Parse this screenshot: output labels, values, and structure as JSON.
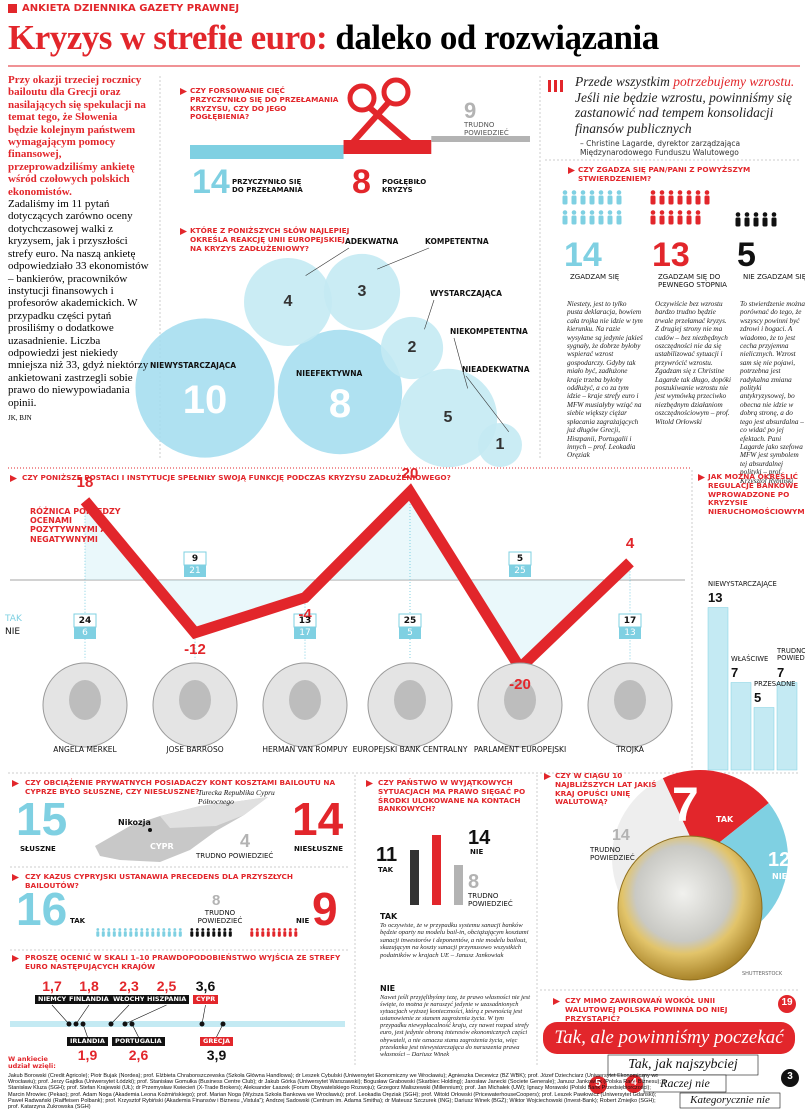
{
  "header": {
    "kicker": "ANKIETA DZIENNIKA GAZETY PRAWNEJ",
    "title_red": "Kryzys w strefie euro:",
    "title_black": "daleko od rozwiązania"
  },
  "intro": {
    "lead": "Przy okazji trzeciej rocznicy bailoutu dla Grecji oraz nasilających się spekulacji na temat tego, że Słowenia będzie kolejnym państwem wymagającym pomocy finansowej, przeprowadziliśmy ankietę wśród czołowych polskich ekonomistów.",
    "body": "Zadaliśmy im 11 pytań dotyczących zarówno oceny dotychczasowej walki z kryzysem, jak i przyszłości strefy euro. Na naszą ankietę odpowiedziało 33 ekonomistów – bankierów, pracowników instytucji finansowych i profesorów akademickich. W przypadku części pytań prosiliśmy o dodatkowe uzasadnienie. Liczba odpowiedzi jest niekiedy mniejsza niż 33, gdyż niektórzy ankietowani zastrzegli sobie prawo do niewypowiadania opinii.",
    "signature": "JK, BJN"
  },
  "q1": {
    "question": "CZY FORSOWANIE CIĘĆ PRZYCZYNIŁO SIĘ DO PRZEŁAMANIA KRYZYSU, CZY DO JEGO POGŁĘBIENIA?",
    "items": [
      {
        "value": 14,
        "label": "PRZYCZYNIŁO SIĘ DO PRZEŁAMANIA"
      },
      {
        "value": 8,
        "label": "POGŁĘBIŁO KRYZYS"
      },
      {
        "value": 9,
        "label": "TRUDNO POWIEDZIEĆ"
      }
    ]
  },
  "q2": {
    "question": "KTÓRE Z PONIŻSZYCH SŁÓW NAJLEPIEJ OKREŚLA REAKCJĘ UNII EUROPEJSKIEJ NA KRYZYS ZADŁUŻENIOWY?",
    "items": [
      {
        "label": "NIEWYSTARCZAJĄCA",
        "value": 10
      },
      {
        "label": "NIEEFEKTYWNA",
        "value": 8
      },
      {
        "label": "ADEKWATNA",
        "value": 4
      },
      {
        "label": "KOMPETENTNA",
        "value": 3
      },
      {
        "label": "WYSTARCZAJĄCA",
        "value": 2
      },
      {
        "label": "NIEKOMPETENTNA",
        "value": 5
      },
      {
        "label": "NIEADEKWATNA",
        "value": 1
      }
    ]
  },
  "quote": {
    "text_start": "Przede wszystkim",
    "text_highlight": "potrzebujemy wzrostu.",
    "text_end": "Jeśli nie będzie wzrostu, powinniśmy się zastanowić nad tempem konsolidacji finansów publicznych",
    "author": "– Christine Lagarde, dyrektor zarządzająca Międzynarodowego Funduszu Walutowego"
  },
  "q3": {
    "question": "CZY ZGADZA SIĘ PAN/PANI Z POWYŻSZYM STWIERDZENIEM?",
    "items": [
      {
        "value": 14,
        "label": "ZGADZAM SIĘ",
        "comment": "Niestety, jest to tylko pusta deklaracja, bowiem cała trojka nie idzie w tym kierunku. Na razie wysyłane są jedynie jakieś sygnały, że dobrze byłoby wspierać wzrost gospodarczy. Gdyby tak miało być, zadłużone kraje trzeba byłoby oddłużyć, a co za tym idzie – kraje strefy euro i MFW musiałyby wziąć na siebie większy ciężar spłacania zagrażających już długów Grecji, Hiszpanii, Portugalii i innych – prof. Leokadia Oręziak"
      },
      {
        "value": 13,
        "label": "ZGADZAM SIĘ DO PEWNEGO STOPNIA",
        "comment": "Oczywiście bez wzrostu bardzo trudno będzie trwale przełamać kryzys. Z drugiej strony nie ma cudów – bez niezbędnych oszczędności nie da się ustabilizować sytuacji i przywrócić wzrostu. Zgadzam się z Christine Lagarde tak długo, dopóki poszukiwanie wzrostu nie jest wymówką przeciwko niezbędnym działaniom oszczędnościowym – prof. Witold Orłowski"
      },
      {
        "value": 5,
        "label": "NIE ZGADZAM SIĘ",
        "comment": "To stwierdzenie można porównać do tego, że wszyscy powinni być zdrowi i bogaci. A wiadomo, że to jest cecha przyjemna nielicznych. Wzrost sam się nie pojawi, potrzebna jest radykalna zmiana polityki antykryzysowej, bo obecna nie idzie w dobrą stronę, a do tego jest absurdalna – co widać po jej efektach. Pani Lagarde jako szefowa MFW jest symbolem tej absurdalnej polityki – prof. Krzysztof Rybiński"
      }
    ]
  },
  "q4": {
    "question": "CZY PONIŻSZE POSTACI I INSTYTUCJE SPEŁNIŁY SWOJĄ FUNKCJĘ PODCZAS KRYZYSU ZADŁUŻENIOWEGO?",
    "diff_label": "RÓŻNICA POMIĘDZY OCENAMI POZYTYWNYMI A NEGATYWNYMI",
    "legend_yes": "TAK",
    "legend_no": "NIE",
    "items": [
      {
        "name": "ANGELA MERKEL",
        "diff": 18,
        "yes": 24,
        "no": 6
      },
      {
        "name": "JOSE BARROSO",
        "diff": -12,
        "yes": 9,
        "no": 21
      },
      {
        "name": "HERMAN VAN ROMPUY",
        "diff": -4,
        "yes": 13,
        "no": 17
      },
      {
        "name": "EUROPEJSKI BANK CENTRALNY",
        "diff": 20,
        "yes": 25,
        "no": 5
      },
      {
        "name": "PARLAMENT EUROPEJSKI",
        "diff": -20,
        "yes": 5,
        "no": 25
      },
      {
        "name": "TROJKA",
        "diff": 4,
        "yes": 17,
        "no": 13
      }
    ]
  },
  "q5": {
    "question": "JAK MOŻNA OKREŚLIĆ REGULACJE BANKOWE WPROWADZONE PO KRYZYSIE NIERUCHOMOŚCIOWYM?",
    "items": [
      {
        "label": "NIEWYSTARCZAJĄCE",
        "value": 13
      },
      {
        "label": "WŁAŚCIWE",
        "value": 7
      },
      {
        "label": "PRZESADNE",
        "value": 5
      },
      {
        "label": "TRUDNO POWIEDZIEĆ",
        "value": 7
      }
    ]
  },
  "q6": {
    "question": "CZY OBCIĄŻENIE PRYWATNYCH POSIADACZY KONT KOSZTAMI BAILOUTU NA CYPRZE BYŁO SŁUSZNE, CZY NIESŁUSZNE?",
    "items": [
      {
        "value": 15,
        "label": "SŁUSZNE"
      },
      {
        "value": 4,
        "label": "TRUDNO POWIEDZIEĆ"
      },
      {
        "value": 14,
        "label": "NIESŁUSZNE"
      }
    ],
    "map_region": "Turecka Republika Cypru Północnego",
    "map_city": "Nikozja",
    "map_country": "CYPR"
  },
  "q7": {
    "question": "CZY KAZUS CYPRYJSKI USTANAWIA PRECEDENS DLA PRZYSZŁYCH BAILOUTÓW?",
    "items": [
      {
        "value": 16,
        "label": "TAK"
      },
      {
        "value": 8,
        "label": "TRUDNO POWIEDZIEĆ"
      },
      {
        "value": 9,
        "label": "NIE"
      }
    ]
  },
  "q8": {
    "question": "PROSZĘ OCENIĆ W SKALI 1–10 PRAWDOPODOBIEŃSTWO WYJŚCIA ZE STREFY EURO NASTĘPUJĄCYCH KRAJÓW",
    "top": [
      {
        "country": "NIEMCY",
        "value": 1.7,
        "label": "1,7"
      },
      {
        "country": "FINLANDIA",
        "value": 1.8,
        "label": "1,8"
      },
      {
        "country": "WŁOCHY",
        "value": 2.3,
        "label": "2,3"
      },
      {
        "country": "HISZPANIA",
        "value": 2.5,
        "label": "2,5"
      },
      {
        "country": "CYPR",
        "value": 3.6,
        "label": "3,6"
      }
    ],
    "bottom": [
      {
        "country": "IRLANDIA",
        "value": 1.9,
        "label": "1,9"
      },
      {
        "country": "PORTUGALIA",
        "value": 2.6,
        "label": "2,6"
      },
      {
        "country": "GRECJA",
        "value": 3.9,
        "label": "3,9"
      }
    ],
    "participants_heading": "W ankiecie udział wzięli:",
    "participants": "Jakub Borowski (Credit Agricole); Piotr Bujak (Nordea); prof. Elżbieta Chrabonszczewska (Szkoła Główna Handlowa); dr Leszek Cybulski (Uniwersytet Ekonomiczny we Wrocławiu); Agnieszka Decewicz (BZ WBK); prof. Józef Dziechciarz (Uniwersytet Ekonomiczny we Wrocławiu); prof. Jerzy Gajdka (Uniwersytet Łódzki); prof. Stanisław Gomułka (Business Centre Club); dr Jakub Górka (Uniwersytet Warszawski); Bogusław Grabowski (Skarbiec Holding); Jarosław Janecki (Societe Generale); Janusz Jankowiak (Polska Rada Biznesu); dr Stanisław Kluza (SGH); prof. Stefan Krajewski (UŁ); dr Przemysław Kwiecień (X-Trade Brokers); Aleksander Łaszek (Forum Obywatelskiego Rozwoju); Grzegorz Maliszewski (Millennium); prof. Jan Michałek (UW); Ignacy Morawski (Polski Bank Przedsiębiorczości); Marcin Mrowiec (Pekao); prof. Adam Noga (Akademia Leona Koźmińskiego); prof. Marian Noga (Wyższa Szkoła Bankowa we Wrocławiu); prof. Leokadia Oręziak (SGH); prof. Witold Orłowski (PricewaterhouseCoopers); prof. Leszek Pawłowicz (Uniwersytet Gdański); Paweł Radwański (Raiffeisen Polbank); prof. Krzysztof Rybiński (Akademia Finansów i Biznesu „Vistula”); Andrzej Sadowski (Centrum im. Adama Smitha); dr Mateusz Szczurek (ING); Dariusz Winek (BGŻ); Wiktor Wojciechowski (Invest-Bank); Robert Zmiejko (SGH); prof. Katarzyna Żukrowska (SGH)"
  },
  "q9": {
    "question": "CZY PAŃSTWO W WYJĄTKOWYCH SYTUACJACH MA PRAWO SIĘGAĆ PO ŚRODKI ULOKOWANE NA KONTACH BANKOWYCH?",
    "items": [
      {
        "value": 11,
        "label": "TAK"
      },
      {
        "value": 14,
        "label": "NIE"
      },
      {
        "value": 8,
        "label": "TRUDNO POWIEDZIEĆ"
      }
    ],
    "comments": [
      {
        "heading": "TAK",
        "text": "To oczywiste, że w przypadku systemu sanacji banków będzie oparty na modelu bail-in, obciążającym kosztami sanacji inwestorów i deponentów, a nie modelu bailout, skazującym na koszty sanacji przymusowo wszystkich podatników w krajach UE – Janusz Jankowiak"
      },
      {
        "heading": "NIE",
        "text": "Nawet jeśli przyjęlibyśmy tezę, że prawo własności nie jest święte, to można je naruszyć jedynie w uzasadnionych sytuacjach wyższej konieczności, którą z pewnością jest ustanowienie ze stanem zagrożenia życia. W tym przypadku niewypłacalność kraju, czy nawet rozpad strefy euro, jest jedynie obroną interesów ekonomicznych części obywateli, a nie oznacza stanu zagrożenia życia, więc przesłanka jest niewystarczająca do naruszenia prawa własności – Dariusz Winek"
      }
    ]
  },
  "q10": {
    "question": "CZY W CIĄGU 10 NAJBLIŻSZYCH LAT JAKIŚ KRAJ OPUŚCI UNIĘ WALUTOWĄ?",
    "items": [
      {
        "value": 7,
        "label": "TAK"
      },
      {
        "value": 12,
        "label": "NIE"
      },
      {
        "value": 14,
        "label": "TRUDNO POWIEDZIEĆ"
      }
    ],
    "credit": "SHUTTERSTOCK"
  },
  "q11": {
    "question": "CZY MIMO ZAWIROWAŃ WOKÓŁ UNII WALUTOWEJ POLSKA POWINNA DO NIEJ PRZYSTĄPIĆ?",
    "items": [
      {
        "value": 19,
        "label": "Tak, ale powinniśmy poczekać"
      },
      {
        "value": 5,
        "label": "Tak, jak najszybciej"
      },
      {
        "value": 4,
        "label": "Raczej nie"
      },
      {
        "value": 3,
        "label": "Kategorycznie nie"
      }
    ]
  }
}
